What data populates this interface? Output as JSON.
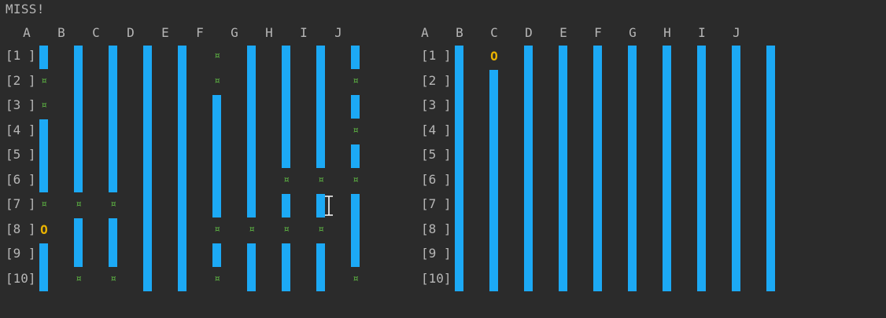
{
  "status": "MISS!",
  "cols": [
    "A",
    "B",
    "C",
    "D",
    "E",
    "F",
    "G",
    "H",
    "I",
    "J"
  ],
  "row_labels": [
    "[1 ]",
    "[2 ]",
    "[3 ]",
    "[4 ]",
    "[5 ]",
    "[6 ]",
    "[7 ]",
    "[8 ]",
    "[9 ]",
    "[10]"
  ],
  "miss_glyph": "¤",
  "hit_glyph": "O",
  "colors": {
    "background": "#2b2b2b",
    "water": "#1ca9f5",
    "miss": "#5fb944",
    "hit": "#e9b200",
    "text": "#b6b6b6"
  },
  "left_board": {
    "grid": [
      [
        "W",
        "W",
        "W",
        "W",
        "W",
        "M",
        "W",
        "W",
        "W",
        "W"
      ],
      [
        "M",
        "W",
        "W",
        "W",
        "W",
        "M",
        "W",
        "W",
        "W",
        "M"
      ],
      [
        "M",
        "W",
        "W",
        "W",
        "W",
        "W",
        "W",
        "W",
        "W",
        "W"
      ],
      [
        "W",
        "W",
        "W",
        "W",
        "W",
        "W",
        "W",
        "W",
        "W",
        "M"
      ],
      [
        "W",
        "W",
        "W",
        "W",
        "W",
        "W",
        "W",
        "W",
        "W",
        "W"
      ],
      [
        "W",
        "W",
        "W",
        "W",
        "W",
        "W",
        "W",
        "M",
        "M",
        "M"
      ],
      [
        "M",
        "M",
        "M",
        "W",
        "W",
        "W",
        "W",
        "W",
        "W",
        "W"
      ],
      [
        "H",
        "W",
        "W",
        "W",
        "W",
        "M",
        "M",
        "M",
        "M",
        "W"
      ],
      [
        "W",
        "W",
        "W",
        "W",
        "W",
        "W",
        "W",
        "W",
        "W",
        "W"
      ],
      [
        "W",
        "M",
        "M",
        "W",
        "W",
        "M",
        "W",
        "W",
        "W",
        "M"
      ]
    ]
  },
  "right_board": {
    "grid": [
      [
        "W",
        "H",
        "W",
        "W",
        "W",
        "W",
        "W",
        "W",
        "W",
        "W"
      ],
      [
        "W",
        "W",
        "W",
        "W",
        "W",
        "W",
        "W",
        "W",
        "W",
        "W"
      ],
      [
        "W",
        "W",
        "W",
        "W",
        "W",
        "W",
        "W",
        "W",
        "W",
        "W"
      ],
      [
        "W",
        "W",
        "W",
        "W",
        "W",
        "W",
        "W",
        "W",
        "W",
        "W"
      ],
      [
        "W",
        "W",
        "W",
        "W",
        "W",
        "W",
        "W",
        "W",
        "W",
        "W"
      ],
      [
        "W",
        "W",
        "W",
        "W",
        "W",
        "W",
        "W",
        "W",
        "W",
        "W"
      ],
      [
        "W",
        "W",
        "W",
        "W",
        "W",
        "W",
        "W",
        "W",
        "W",
        "W"
      ],
      [
        "W",
        "W",
        "W",
        "W",
        "W",
        "W",
        "W",
        "W",
        "W",
        "W"
      ],
      [
        "W",
        "W",
        "W",
        "W",
        "W",
        "W",
        "W",
        "W",
        "W",
        "W"
      ],
      [
        "W",
        "W",
        "W",
        "W",
        "W",
        "W",
        "W",
        "W",
        "W",
        "W"
      ]
    ]
  }
}
